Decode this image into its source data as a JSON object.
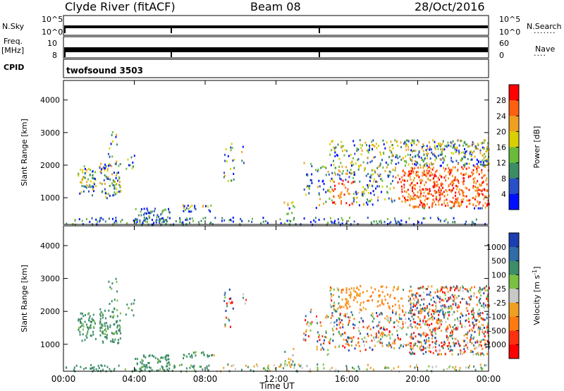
{
  "header": {
    "title": "Clyde River (fitACF)",
    "beam": "Beam 08",
    "date": "28/Oct/2016"
  },
  "top_panels": {
    "nsky_label": "N.Sky",
    "nsky_ticks": [
      "10^5",
      "10^0"
    ],
    "nsearch_label": "N.Search",
    "nsearch_ticks": [
      "10^5",
      "10^0"
    ],
    "freq_label": "Freq.",
    "freq_unit": "[MHz]",
    "freq_ticks": [
      "10",
      "8"
    ],
    "nave_label": "Nave",
    "nave_ticks": [
      "60",
      "0"
    ],
    "cpid_label": "CPID",
    "cpid_value": "twofsound 3503"
  },
  "chart_data": [
    {
      "type": "heatmap",
      "title": "",
      "xlabel": "",
      "ylabel": "Slant Range [km]",
      "x_ticks": [
        "00:00",
        "04:00",
        "08:00",
        "12:00",
        "16:00",
        "20:00",
        "00:00"
      ],
      "y_ticks": [
        1000,
        2000,
        3000,
        4000
      ],
      "ylim": [
        180,
        4600
      ],
      "xlim_hours": [
        0,
        24
      ],
      "colorbar": {
        "label": "Power [dB]",
        "ticks": [
          "4",
          "8",
          "12",
          "16",
          "20",
          "24",
          "28"
        ],
        "colors": [
          "#0010ff",
          "#2850c8",
          "#3c8c64",
          "#6abb3a",
          "#d8d000",
          "#f0a020",
          "#ff6010",
          "#ff0000"
        ]
      },
      "grid": false
    },
    {
      "type": "heatmap",
      "title": "",
      "xlabel": "Time UT",
      "ylabel": "Slant Range [km]",
      "x_ticks": [
        "00:00",
        "04:00",
        "08:00",
        "12:00",
        "16:00",
        "20:00",
        "00:00"
      ],
      "y_ticks": [
        1000,
        2000,
        3000,
        4000
      ],
      "ylim": [
        180,
        4600
      ],
      "xlim_hours": [
        0,
        24
      ],
      "colorbar": {
        "label": "Velocity [m s",
        "label_sup": "-1",
        "label_tail": "]",
        "ticks": [
          "1000",
          "500",
          "100",
          "25",
          "-25",
          "-100",
          "-500",
          "-1000"
        ],
        "colors": [
          "#1a3fb0",
          "#2f6ca8",
          "#3d8c6a",
          "#7ac143",
          "#c8c8c8",
          "#f0a020",
          "#ff7a10",
          "#ff3010",
          "#ff0000"
        ]
      },
      "grid": false
    }
  ]
}
